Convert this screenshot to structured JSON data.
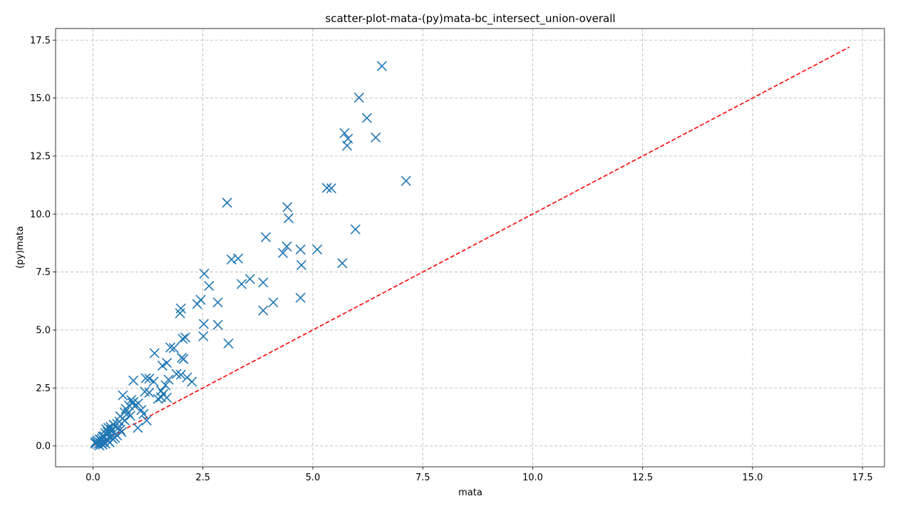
{
  "chart_data": {
    "type": "scatter",
    "title": "scatter-plot-mata-(py)mata-bc_intersect_union-overall",
    "xlabel": "mata",
    "ylabel": "(py)mata",
    "xlim": [
      -0.85,
      18.0
    ],
    "ylim": [
      -0.9,
      18.0
    ],
    "grid": true,
    "x_ticks": [
      "0.0",
      "2.5",
      "5.0",
      "7.5",
      "10.0",
      "12.5",
      "15.0",
      "17.5"
    ],
    "y_ticks": [
      "0.0",
      "2.5",
      "5.0",
      "7.5",
      "10.0",
      "12.5",
      "15.0",
      "17.5"
    ],
    "marker": "x",
    "colors": {
      "points": "#1f77b4",
      "reference_line": "#ff0000"
    },
    "reference_line": {
      "style": "dashed",
      "from": [
        0,
        0
      ],
      "to": [
        17.2,
        17.2
      ]
    },
    "points": [
      [
        6.57,
        16.38
      ],
      [
        6.05,
        15.02
      ],
      [
        6.23,
        14.14
      ],
      [
        5.72,
        13.49
      ],
      [
        5.8,
        13.25
      ],
      [
        5.78,
        12.95
      ],
      [
        6.43,
        13.3
      ],
      [
        7.12,
        11.43
      ],
      [
        5.32,
        11.13
      ],
      [
        5.42,
        11.11
      ],
      [
        5.97,
        9.34
      ],
      [
        3.05,
        10.49
      ],
      [
        4.42,
        10.3
      ],
      [
        4.45,
        9.82
      ],
      [
        3.93,
        9.0
      ],
      [
        5.1,
        8.47
      ],
      [
        4.72,
        8.47
      ],
      [
        4.41,
        8.6
      ],
      [
        4.32,
        8.32
      ],
      [
        4.74,
        7.8
      ],
      [
        5.67,
        7.88
      ],
      [
        3.15,
        8.04
      ],
      [
        3.3,
        8.08
      ],
      [
        3.57,
        7.2
      ],
      [
        3.38,
        6.98
      ],
      [
        3.87,
        7.05
      ],
      [
        4.1,
        6.19
      ],
      [
        3.87,
        5.84
      ],
      [
        4.72,
        6.39
      ],
      [
        2.53,
        7.43
      ],
      [
        2.64,
        6.9
      ],
      [
        2.84,
        6.19
      ],
      [
        2.45,
        6.3
      ],
      [
        2.37,
        6.12
      ],
      [
        2.0,
        5.93
      ],
      [
        1.98,
        5.72
      ],
      [
        2.52,
        5.26
      ],
      [
        2.84,
        5.22
      ],
      [
        2.51,
        4.73
      ],
      [
        3.08,
        4.42
      ],
      [
        2.1,
        4.68
      ],
      [
        2.04,
        4.62
      ],
      [
        1.84,
        4.22
      ],
      [
        1.76,
        4.25
      ],
      [
        1.4,
        4.0
      ],
      [
        2.02,
        3.8
      ],
      [
        2.06,
        3.75
      ],
      [
        1.68,
        3.58
      ],
      [
        1.58,
        3.46
      ],
      [
        1.9,
        3.1
      ],
      [
        2.0,
        3.07
      ],
      [
        2.14,
        2.95
      ],
      [
        2.25,
        2.77
      ],
      [
        1.72,
        2.86
      ],
      [
        1.65,
        2.62
      ],
      [
        1.2,
        2.92
      ],
      [
        1.28,
        2.9
      ],
      [
        0.92,
        2.82
      ],
      [
        1.38,
        2.78
      ],
      [
        1.18,
        2.34
      ],
      [
        1.28,
        2.3
      ],
      [
        1.55,
        2.38
      ],
      [
        1.6,
        2.24
      ],
      [
        1.55,
        2.1
      ],
      [
        1.68,
        2.08
      ],
      [
        1.48,
        2.03
      ],
      [
        0.68,
        2.18
      ],
      [
        0.87,
        1.98
      ],
      [
        0.92,
        1.9
      ],
      [
        1.03,
        1.84
      ],
      [
        0.82,
        1.75
      ],
      [
        0.95,
        1.72
      ],
      [
        0.75,
        1.6
      ],
      [
        0.72,
        1.45
      ],
      [
        0.8,
        1.42
      ],
      [
        1.1,
        1.55
      ],
      [
        1.15,
        1.38
      ],
      [
        0.62,
        1.28
      ],
      [
        0.67,
        1.18
      ],
      [
        0.72,
        1.1
      ],
      [
        0.6,
        1.05
      ],
      [
        1.22,
        1.1
      ],
      [
        0.55,
        0.95
      ],
      [
        0.47,
        0.92
      ],
      [
        0.5,
        0.85
      ],
      [
        0.4,
        0.82
      ],
      [
        0.35,
        0.78
      ],
      [
        0.3,
        0.72
      ],
      [
        1.02,
        0.78
      ],
      [
        0.62,
        0.7
      ],
      [
        0.42,
        0.62
      ],
      [
        0.28,
        0.55
      ],
      [
        0.32,
        0.48
      ],
      [
        0.25,
        0.42
      ],
      [
        0.4,
        0.4
      ],
      [
        0.5,
        0.35
      ],
      [
        0.45,
        0.3
      ],
      [
        0.2,
        0.32
      ],
      [
        0.15,
        0.28
      ],
      [
        0.1,
        0.24
      ],
      [
        0.35,
        0.22
      ],
      [
        0.25,
        0.18
      ],
      [
        0.08,
        0.18
      ],
      [
        0.05,
        0.15
      ],
      [
        0.18,
        0.12
      ],
      [
        0.12,
        0.08
      ],
      [
        0.22,
        0.06
      ],
      [
        0.15,
        0.02
      ],
      [
        0.28,
        0.1
      ],
      [
        0.38,
        0.15
      ],
      [
        0.55,
        0.45
      ],
      [
        0.65,
        0.6
      ],
      [
        0.85,
        1.3
      ],
      [
        0.9,
        1.85
      ],
      [
        0.58,
        0.78
      ],
      [
        0.33,
        0.6
      ],
      [
        0.42,
        0.7
      ],
      [
        0.22,
        0.4
      ],
      [
        0.18,
        0.25
      ],
      [
        0.06,
        0.1
      ]
    ]
  }
}
